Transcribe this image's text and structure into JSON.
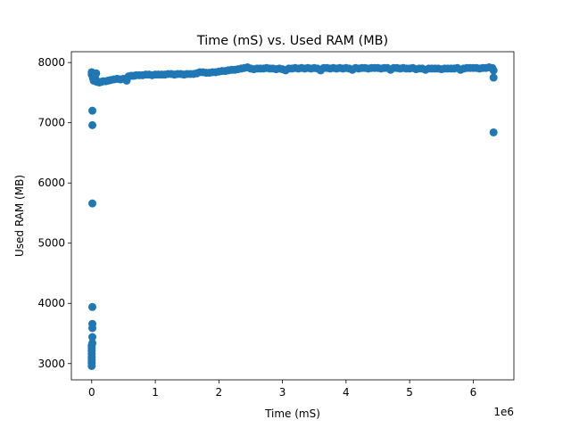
{
  "chart_data": {
    "type": "scatter",
    "title": "Time (mS) vs. Used RAM (MB)",
    "xlabel": "Time (mS)",
    "ylabel": "Used RAM (MB)",
    "x_offset_label": "1e6",
    "xlim": [
      -0.32,
      6.64
    ],
    "ylim": [
      2730,
      8180
    ],
    "x_ticks": [
      0,
      1,
      2,
      3,
      4,
      5,
      6
    ],
    "y_ticks": [
      3000,
      4000,
      5000,
      6000,
      7000,
      8000
    ],
    "grid": false,
    "marker_color": "#1f77b4",
    "series": [
      {
        "points": [
          [
            0.0,
            2960
          ],
          [
            0.0,
            3010
          ],
          [
            0.0,
            3060
          ],
          [
            0.0,
            3110
          ],
          [
            0.0,
            3160
          ],
          [
            0.0,
            3210
          ],
          [
            0.0,
            3260
          ],
          [
            0.0,
            3300
          ],
          [
            0.01,
            3340
          ],
          [
            0.01,
            3440
          ],
          [
            0.01,
            3590
          ],
          [
            0.01,
            3660
          ],
          [
            0.01,
            3940
          ],
          [
            0.01,
            5660
          ],
          [
            0.01,
            6960
          ],
          [
            0.01,
            7200
          ],
          [
            0.0,
            7800
          ],
          [
            0.0,
            7840
          ],
          [
            0.02,
            7780
          ],
          [
            0.02,
            7740
          ],
          [
            0.03,
            7700
          ],
          [
            0.04,
            7800
          ],
          [
            0.05,
            7760
          ],
          [
            0.06,
            7720
          ],
          [
            0.07,
            7820
          ],
          [
            0.08,
            7680
          ],
          [
            0.1,
            7680
          ],
          [
            0.12,
            7670
          ],
          [
            0.15,
            7680
          ],
          [
            0.18,
            7690
          ],
          [
            0.22,
            7690
          ],
          [
            0.26,
            7700
          ],
          [
            0.3,
            7710
          ],
          [
            0.35,
            7720
          ],
          [
            0.4,
            7730
          ],
          [
            0.45,
            7720
          ],
          [
            0.5,
            7730
          ],
          [
            0.55,
            7700
          ],
          [
            0.58,
            7770
          ],
          [
            0.62,
            7780
          ],
          [
            0.66,
            7780
          ],
          [
            0.7,
            7790
          ],
          [
            0.75,
            7790
          ],
          [
            0.8,
            7790
          ],
          [
            0.85,
            7800
          ],
          [
            0.9,
            7800
          ],
          [
            0.95,
            7790
          ],
          [
            1.0,
            7800
          ],
          [
            1.05,
            7800
          ],
          [
            1.1,
            7800
          ],
          [
            1.15,
            7800
          ],
          [
            1.2,
            7810
          ],
          [
            1.25,
            7810
          ],
          [
            1.3,
            7800
          ],
          [
            1.35,
            7810
          ],
          [
            1.4,
            7810
          ],
          [
            1.45,
            7800
          ],
          [
            1.5,
            7810
          ],
          [
            1.55,
            7810
          ],
          [
            1.6,
            7810
          ],
          [
            1.65,
            7820
          ],
          [
            1.7,
            7840
          ],
          [
            1.75,
            7840
          ],
          [
            1.8,
            7830
          ],
          [
            1.85,
            7830
          ],
          [
            1.9,
            7840
          ],
          [
            1.95,
            7840
          ],
          [
            2.0,
            7850
          ],
          [
            2.05,
            7860
          ],
          [
            2.1,
            7860
          ],
          [
            2.15,
            7870
          ],
          [
            2.2,
            7880
          ],
          [
            2.25,
            7880
          ],
          [
            2.3,
            7890
          ],
          [
            2.35,
            7900
          ],
          [
            2.4,
            7910
          ],
          [
            2.45,
            7920
          ],
          [
            2.5,
            7900
          ],
          [
            2.55,
            7890
          ],
          [
            2.6,
            7900
          ],
          [
            2.65,
            7900
          ],
          [
            2.7,
            7900
          ],
          [
            2.75,
            7910
          ],
          [
            2.8,
            7900
          ],
          [
            2.85,
            7900
          ],
          [
            2.9,
            7890
          ],
          [
            2.95,
            7900
          ],
          [
            3.0,
            7890
          ],
          [
            3.05,
            7870
          ],
          [
            3.1,
            7900
          ],
          [
            3.15,
            7900
          ],
          [
            3.2,
            7910
          ],
          [
            3.25,
            7900
          ],
          [
            3.3,
            7910
          ],
          [
            3.35,
            7900
          ],
          [
            3.4,
            7910
          ],
          [
            3.45,
            7900
          ],
          [
            3.5,
            7910
          ],
          [
            3.55,
            7900
          ],
          [
            3.6,
            7870
          ],
          [
            3.65,
            7910
          ],
          [
            3.7,
            7910
          ],
          [
            3.75,
            7900
          ],
          [
            3.8,
            7910
          ],
          [
            3.85,
            7900
          ],
          [
            3.9,
            7910
          ],
          [
            3.95,
            7900
          ],
          [
            4.0,
            7910
          ],
          [
            4.05,
            7900
          ],
          [
            4.1,
            7880
          ],
          [
            4.15,
            7910
          ],
          [
            4.2,
            7900
          ],
          [
            4.25,
            7910
          ],
          [
            4.3,
            7910
          ],
          [
            4.35,
            7900
          ],
          [
            4.4,
            7910
          ],
          [
            4.45,
            7910
          ],
          [
            4.5,
            7910
          ],
          [
            4.55,
            7900
          ],
          [
            4.6,
            7910
          ],
          [
            4.65,
            7910
          ],
          [
            4.7,
            7880
          ],
          [
            4.75,
            7910
          ],
          [
            4.8,
            7910
          ],
          [
            4.85,
            7900
          ],
          [
            4.9,
            7910
          ],
          [
            4.95,
            7900
          ],
          [
            5.0,
            7900
          ],
          [
            5.05,
            7910
          ],
          [
            5.1,
            7890
          ],
          [
            5.15,
            7900
          ],
          [
            5.2,
            7900
          ],
          [
            5.25,
            7880
          ],
          [
            5.3,
            7900
          ],
          [
            5.35,
            7900
          ],
          [
            5.4,
            7900
          ],
          [
            5.45,
            7900
          ],
          [
            5.5,
            7890
          ],
          [
            5.55,
            7900
          ],
          [
            5.6,
            7900
          ],
          [
            5.65,
            7900
          ],
          [
            5.7,
            7900
          ],
          [
            5.75,
            7910
          ],
          [
            5.8,
            7880
          ],
          [
            5.85,
            7900
          ],
          [
            5.9,
            7910
          ],
          [
            5.95,
            7910
          ],
          [
            6.0,
            7910
          ],
          [
            6.05,
            7910
          ],
          [
            6.1,
            7900
          ],
          [
            6.15,
            7910
          ],
          [
            6.2,
            7910
          ],
          [
            6.25,
            7920
          ],
          [
            6.3,
            7910
          ],
          [
            6.32,
            7870
          ],
          [
            6.32,
            7750
          ],
          [
            6.32,
            6840
          ]
        ]
      }
    ]
  }
}
